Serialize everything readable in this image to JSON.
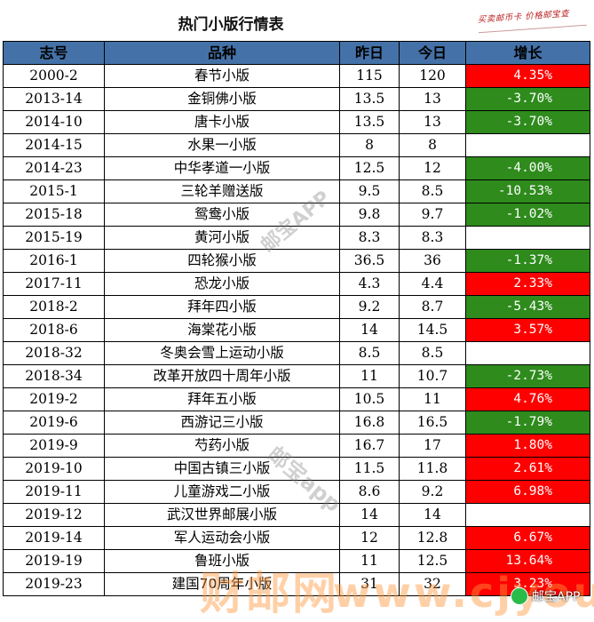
{
  "title": "热门小版行情表",
  "stamp_text": "买卖邮币卡 价格邮宝查",
  "headers": [
    "志号",
    "品种",
    "昨日",
    "今日",
    "增长"
  ],
  "rows": [
    {
      "code": "2000-2",
      "name": "春节小版",
      "yesterday": "115",
      "today": "120",
      "change": "4.35%",
      "trend": "up"
    },
    {
      "code": "2013-14",
      "name": "金铜佛小版",
      "yesterday": "13.5",
      "today": "13",
      "change": "-3.70%",
      "trend": "down"
    },
    {
      "code": "2014-10",
      "name": "唐卡小版",
      "yesterday": "13.5",
      "today": "13",
      "change": "-3.70%",
      "trend": "down"
    },
    {
      "code": "2014-15",
      "name": "水果一小版",
      "yesterday": "8",
      "today": "8",
      "change": "",
      "trend": "flat"
    },
    {
      "code": "2014-23",
      "name": "中华孝道一小版",
      "yesterday": "12.5",
      "today": "12",
      "change": "-4.00%",
      "trend": "down"
    },
    {
      "code": "2015-1",
      "name": "三轮羊赠送版",
      "yesterday": "9.5",
      "today": "8.5",
      "change": "-10.53%",
      "trend": "down"
    },
    {
      "code": "2015-18",
      "name": "鸳鸯小版",
      "yesterday": "9.8",
      "today": "9.7",
      "change": "-1.02%",
      "trend": "down"
    },
    {
      "code": "2015-19",
      "name": "黄河小版",
      "yesterday": "8.3",
      "today": "8.3",
      "change": "",
      "trend": "flat"
    },
    {
      "code": "2016-1",
      "name": "四轮猴小版",
      "yesterday": "36.5",
      "today": "36",
      "change": "-1.37%",
      "trend": "down"
    },
    {
      "code": "2017-11",
      "name": "恐龙小版",
      "yesterday": "4.3",
      "today": "4.4",
      "change": "2.33%",
      "trend": "up"
    },
    {
      "code": "2018-2",
      "name": "拜年四小版",
      "yesterday": "9.2",
      "today": "8.7",
      "change": "-5.43%",
      "trend": "down"
    },
    {
      "code": "2018-6",
      "name": "海棠花小版",
      "yesterday": "14",
      "today": "14.5",
      "change": "3.57%",
      "trend": "up"
    },
    {
      "code": "2018-32",
      "name": "冬奥会雪上运动小版",
      "yesterday": "8.5",
      "today": "8.5",
      "change": "",
      "trend": "flat"
    },
    {
      "code": "2018-34",
      "name": "改革开放四十周年小版",
      "yesterday": "11",
      "today": "10.7",
      "change": "-2.73%",
      "trend": "down"
    },
    {
      "code": "2019-2",
      "name": "拜年五小版",
      "yesterday": "10.5",
      "today": "11",
      "change": "4.76%",
      "trend": "up"
    },
    {
      "code": "2019-6",
      "name": "西游记三小版",
      "yesterday": "16.8",
      "today": "16.5",
      "change": "-1.79%",
      "trend": "down"
    },
    {
      "code": "2019-9",
      "name": "芍药小版",
      "yesterday": "16.7",
      "today": "17",
      "change": "1.80%",
      "trend": "up"
    },
    {
      "code": "2019-10",
      "name": "中国古镇三小版",
      "yesterday": "11.5",
      "today": "11.8",
      "change": "2.61%",
      "trend": "up"
    },
    {
      "code": "2019-11",
      "name": "儿童游戏二小版",
      "yesterday": "8.6",
      "today": "9.2",
      "change": "6.98%",
      "trend": "up"
    },
    {
      "code": "2019-12",
      "name": "武汉世界邮展小版",
      "yesterday": "14",
      "today": "14",
      "change": "",
      "trend": "flat"
    },
    {
      "code": "2019-14",
      "name": "军人运动会小版",
      "yesterday": "12",
      "today": "12.8",
      "change": "6.67%",
      "trend": "up"
    },
    {
      "code": "2019-19",
      "name": "鲁班小版",
      "yesterday": "11",
      "today": "12.5",
      "change": "13.64%",
      "trend": "up"
    },
    {
      "code": "2019-23",
      "name": "建国70周年小版",
      "yesterday": "31",
      "today": "32",
      "change": "3.23%",
      "trend": "up"
    }
  ],
  "colors": {
    "header_bg": "#4472a8",
    "up_bg": "#ff0000",
    "down_bg": "#2e8b1c"
  },
  "watermarks": {
    "wm1": "邮宝APP",
    "wm2": "邮宝app",
    "wm3": "财邮网",
    "wm4": "www.cjyou.net",
    "badge": "邮宝APP"
  }
}
